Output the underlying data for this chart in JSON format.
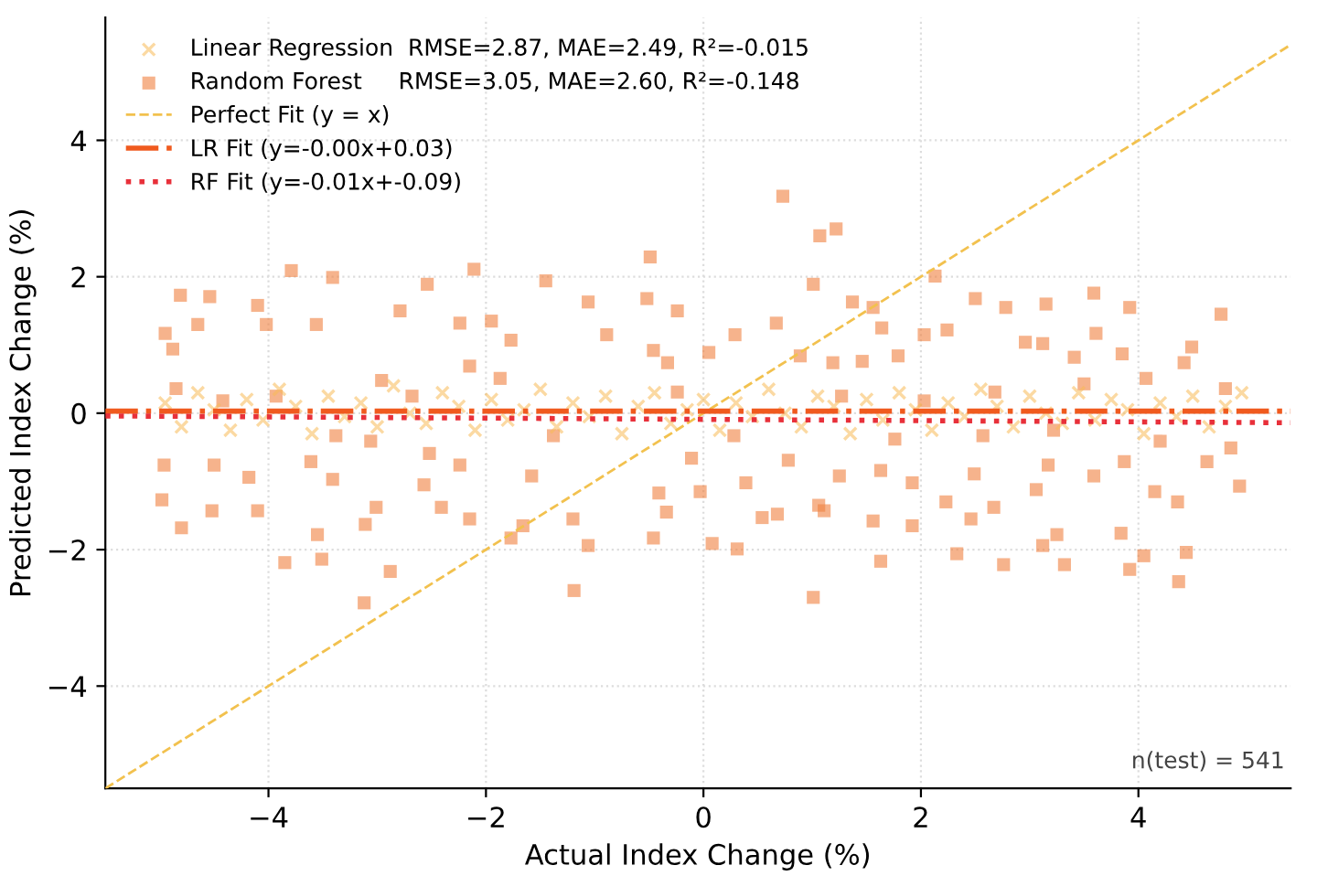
{
  "chart_data": {
    "type": "scatter",
    "xlabel": "Actual Index Change (%)",
    "ylabel": "Predicted Index Change (%)",
    "xlim": [
      -5.5,
      5.4
    ],
    "ylim": [
      -5.5,
      5.8
    ],
    "xticks": [
      -4,
      -2,
      0,
      2,
      4
    ],
    "yticks": [
      -4,
      -2,
      0,
      2,
      4
    ],
    "grid": true,
    "legend": "top left",
    "annotations": [
      "n(test) = 541"
    ],
    "series": [
      {
        "name": "Linear Regression  RMSE=2.87, MAE=2.49, R²=-0.015",
        "marker": "cross",
        "color": "#f7b955",
        "x": [
          -4.95,
          -4.8,
          -4.65,
          -4.5,
          -4.35,
          -4.2,
          -4.05,
          -3.9,
          -3.75,
          -3.6,
          -3.45,
          -3.3,
          -3.15,
          -3.0,
          -2.85,
          -2.7,
          -2.55,
          -2.4,
          -2.25,
          -2.1,
          -1.95,
          -1.8,
          -1.65,
          -1.5,
          -1.35,
          -1.2,
          -1.05,
          -0.9,
          -0.75,
          -0.6,
          -0.45,
          -0.3,
          -0.15,
          0.0,
          0.15,
          0.3,
          0.45,
          0.6,
          0.75,
          0.9,
          1.05,
          1.2,
          1.35,
          1.5,
          1.65,
          1.8,
          1.95,
          2.1,
          2.25,
          2.4,
          2.55,
          2.7,
          2.85,
          3.0,
          3.15,
          3.3,
          3.45,
          3.6,
          3.75,
          3.9,
          4.05,
          4.2,
          4.35,
          4.5,
          4.65,
          4.8,
          4.95
        ],
        "values": [
          0.15,
          -0.2,
          0.3,
          0.05,
          -0.25,
          0.2,
          -0.1,
          0.35,
          0.1,
          -0.3,
          0.25,
          -0.05,
          0.15,
          -0.2,
          0.4,
          0.0,
          -0.15,
          0.3,
          0.1,
          -0.25,
          0.2,
          -0.1,
          0.05,
          0.35,
          -0.2,
          0.15,
          -0.05,
          0.25,
          -0.3,
          0.1,
          0.3,
          -0.15,
          0.05,
          0.2,
          -0.25,
          0.15,
          -0.05,
          0.35,
          0.0,
          -0.2,
          0.25,
          0.1,
          -0.3,
          0.2,
          -0.1,
          0.3,
          0.05,
          -0.25,
          0.15,
          -0.05,
          0.35,
          0.1,
          -0.2,
          0.25,
          0.0,
          -0.15,
          0.3,
          -0.1,
          0.2,
          0.05,
          -0.3,
          0.15,
          -0.05,
          0.25,
          -0.2,
          0.1,
          0.3
        ]
      },
      {
        "name": "Random Forest     RMSE=3.05, MAE=2.60, R²=-0.148",
        "marker": "square",
        "color": "#f08040",
        "x": [
          -4.81,
          -4.54,
          -3.79,
          -3.41,
          -2.54,
          -2.11,
          -1.45,
          -4.95,
          -4.88,
          -4.65,
          -4.02,
          -4.1,
          -3.56,
          -2.79,
          -2.24,
          -1.95,
          -1.77,
          -0.89,
          -1.06,
          -4.8,
          -4.98,
          -4.52,
          -3.85,
          -3.55,
          -3.51,
          -3.12,
          -3.11,
          -2.88,
          -2.41,
          -2.15,
          -1.77,
          -1.66,
          -1.19,
          -1.06,
          -1.2,
          -2.57,
          -4.1,
          -4.18,
          -4.96,
          -4.5,
          -3.61,
          -3.01,
          -3.41,
          -1.58,
          -4.85,
          -4.42,
          -3.93,
          -2.96,
          -2.68,
          -2.15,
          -1.87,
          -3.38,
          -3.06,
          -2.52,
          -2.24,
          -1.38,
          0.73,
          1.07,
          1.22,
          1.01,
          2.13,
          2.5,
          2.78,
          3.15,
          3.59,
          3.92,
          4.76,
          -0.49,
          -0.52,
          -0.24,
          0.29,
          0.67,
          1.37,
          1.56,
          1.64,
          2.03,
          2.24,
          2.96,
          3.12,
          3.41,
          3.61,
          3.85,
          4.49,
          4.42,
          -0.46,
          -0.33,
          0.05,
          0.89,
          1.19,
          1.46,
          1.79,
          1.01,
          1.63,
          0.31,
          0.08,
          -0.46,
          -0.34,
          0.54,
          0.68,
          1.11,
          1.56,
          1.92,
          2.33,
          2.46,
          2.67,
          2.76,
          3.12,
          3.32,
          3.25,
          3.84,
          3.92,
          4.05,
          4.37,
          4.44,
          4.36,
          4.93,
          4.63,
          4.15,
          3.59,
          3.06,
          3.17,
          2.49,
          2.23,
          1.92,
          1.63,
          1.25,
          0.78,
          0.39,
          -0.03,
          -0.41,
          -0.11,
          1.06,
          4.85,
          3.87,
          -0.24,
          0.28,
          1.27,
          2.03,
          2.68,
          3.5,
          4.07,
          4.8,
          3.22,
          2.57,
          1.76,
          4.2
        ],
        "values": [
          1.73,
          1.71,
          2.09,
          1.99,
          1.89,
          2.11,
          1.94,
          1.17,
          0.94,
          1.3,
          1.3,
          1.58,
          1.3,
          1.5,
          1.32,
          1.35,
          1.07,
          1.15,
          1.63,
          -1.68,
          -1.27,
          -1.43,
          -2.19,
          -1.78,
          -2.14,
          -2.78,
          -1.63,
          -2.32,
          -1.38,
          -1.55,
          -1.83,
          -1.65,
          -2.6,
          -1.94,
          -1.55,
          -1.05,
          -1.43,
          -0.94,
          -0.76,
          -0.76,
          -0.71,
          -1.38,
          -0.97,
          -0.92,
          0.36,
          0.18,
          0.25,
          0.48,
          0.25,
          0.69,
          0.51,
          -0.33,
          -0.41,
          -0.59,
          -0.76,
          -0.33,
          3.18,
          2.6,
          2.7,
          1.89,
          2.01,
          1.68,
          1.55,
          1.6,
          1.76,
          1.55,
          1.45,
          2.29,
          1.68,
          1.5,
          1.15,
          1.32,
          1.63,
          1.55,
          1.25,
          1.15,
          1.22,
          1.04,
          1.02,
          0.82,
          1.17,
          0.87,
          0.97,
          0.74,
          0.92,
          0.74,
          0.89,
          0.84,
          0.74,
          0.76,
          0.84,
          -2.7,
          -2.17,
          -1.99,
          -1.91,
          -1.83,
          -1.45,
          -1.53,
          -1.48,
          -1.43,
          -1.58,
          -1.65,
          -2.06,
          -1.55,
          -1.38,
          -2.22,
          -1.94,
          -2.22,
          -1.78,
          -1.76,
          -2.29,
          -2.09,
          -2.47,
          -2.04,
          -1.3,
          -1.07,
          -0.71,
          -1.15,
          -0.92,
          -1.12,
          -0.76,
          -0.89,
          -1.3,
          -1.02,
          -0.84,
          -0.92,
          -0.69,
          -1.02,
          -1.15,
          -1.17,
          -0.66,
          -1.35,
          -0.51,
          -0.71,
          0.31,
          -0.33,
          0.25,
          0.18,
          0.31,
          0.43,
          0.51,
          0.36,
          -0.25,
          -0.33,
          -0.38,
          -0.41
        ]
      },
      {
        "name": "Perfect Fit (y = x)",
        "type": "line",
        "line_style": "dashed",
        "color": "#f2c14e",
        "x": [
          -5.5,
          5.4
        ],
        "values": [
          -5.5,
          5.4
        ]
      },
      {
        "name": "LR Fit (y=-0.00x+0.03)",
        "type": "line",
        "line_style": "dashdot",
        "color": "#f05a1e",
        "x": [
          -5.5,
          5.4
        ],
        "values": [
          0.03,
          0.03
        ]
      },
      {
        "name": "RF Fit (y=-0.01x+-0.09)",
        "type": "line",
        "line_style": "dotted",
        "color": "#e8303a",
        "x": [
          -5.5,
          5.4
        ],
        "values": [
          -0.04,
          -0.14
        ]
      }
    ]
  }
}
